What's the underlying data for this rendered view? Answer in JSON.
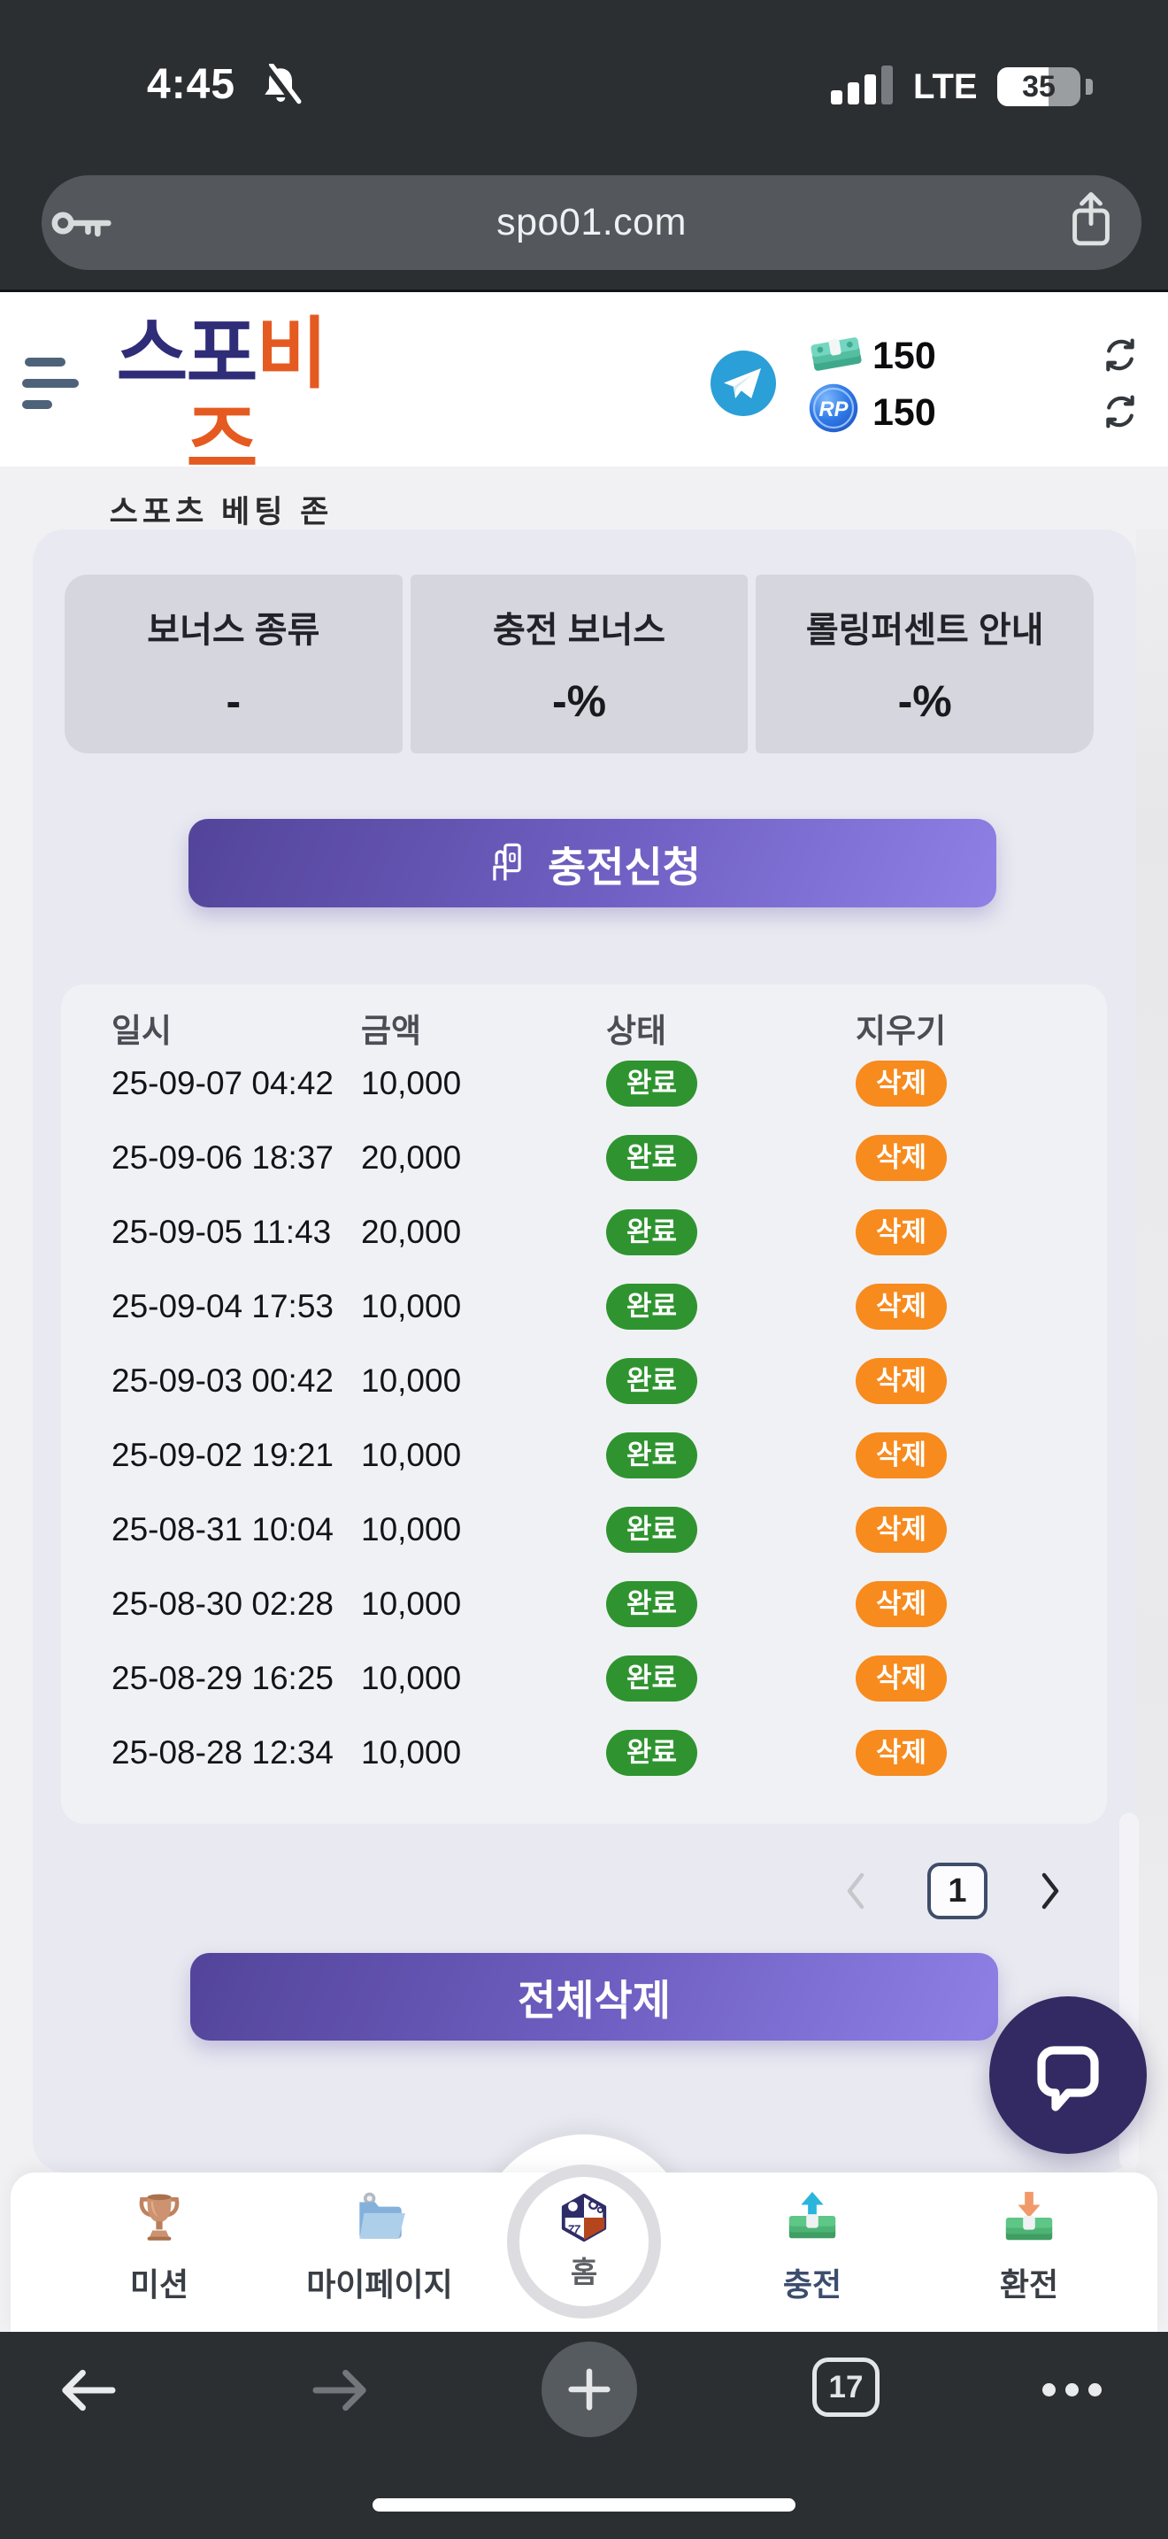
{
  "status_bar": {
    "time": "4:45",
    "network": "LTE",
    "battery": "35"
  },
  "url_bar": {
    "url": "spo01.com"
  },
  "header": {
    "logo_primary": "스포",
    "logo_secondary": "비즈",
    "tagline": "스포츠 베팅 존",
    "cash_amount": "150",
    "point_amount": "150",
    "point_label": "RP"
  },
  "bonus_cards": [
    {
      "label": "보너스 종류",
      "value": "-"
    },
    {
      "label": "충전 보너스",
      "value": "-%"
    },
    {
      "label": "롤링퍼센트 안내",
      "value": "-%"
    }
  ],
  "actions": {
    "recharge_label": "충전신청",
    "delete_all_label": "전체삭제"
  },
  "table": {
    "headers": [
      "일시",
      "금액",
      "상태",
      "지우기"
    ],
    "rows": [
      {
        "date": "25-09-07 04:42",
        "amount": "10,000",
        "status": "완료",
        "action": "삭제"
      },
      {
        "date": "25-09-06 18:37",
        "amount": "20,000",
        "status": "완료",
        "action": "삭제"
      },
      {
        "date": "25-09-05 11:43",
        "amount": "20,000",
        "status": "완료",
        "action": "삭제"
      },
      {
        "date": "25-09-04 17:53",
        "amount": "10,000",
        "status": "완료",
        "action": "삭제"
      },
      {
        "date": "25-09-03 00:42",
        "amount": "10,000",
        "status": "완료",
        "action": "삭제"
      },
      {
        "date": "25-09-02 19:21",
        "amount": "10,000",
        "status": "완료",
        "action": "삭제"
      },
      {
        "date": "25-08-31 10:04",
        "amount": "10,000",
        "status": "완료",
        "action": "삭제"
      },
      {
        "date": "25-08-30 02:28",
        "amount": "10,000",
        "status": "완료",
        "action": "삭제"
      },
      {
        "date": "25-08-29 16:25",
        "amount": "10,000",
        "status": "완료",
        "action": "삭제"
      },
      {
        "date": "25-08-28 12:34",
        "amount": "10,000",
        "status": "완료",
        "action": "삭제"
      }
    ]
  },
  "pagination": {
    "current": "1"
  },
  "bottom_nav": {
    "items": [
      {
        "label": "미션"
      },
      {
        "label": "마이페이지"
      },
      {
        "label": "홈"
      },
      {
        "label": "충전"
      },
      {
        "label": "환전"
      }
    ],
    "active": "충전"
  },
  "browser_toolbar": {
    "tab_count": "17"
  },
  "colors": {
    "accent_purple": "#6f5fc2",
    "status_green": "#2f9430",
    "action_orange": "#f78b1e",
    "logo_navy": "#2f2d78",
    "logo_orange": "#e55a20",
    "chat_indigo": "#332a63"
  }
}
